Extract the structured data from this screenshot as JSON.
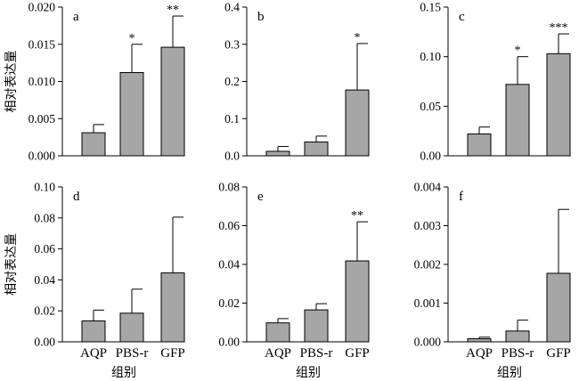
{
  "figure": {
    "ylabel": "相对表达量",
    "xlabel": "组别",
    "categories": [
      "AQP",
      "PBS-r",
      "GFP"
    ]
  },
  "colors": {
    "bar_fill": "#a6a6a6",
    "stroke": "#000000"
  },
  "chart_data": [
    {
      "type": "bar",
      "panel": "a",
      "categories": [
        "AQP",
        "PBS-r",
        "GFP"
      ],
      "values": [
        0.0031,
        0.0112,
        0.0146
      ],
      "errors": [
        0.0011,
        0.0038,
        0.0042
      ],
      "significance": [
        "",
        "*",
        "**"
      ],
      "ylim": [
        0,
        0.02
      ],
      "yticks": [
        "0.000",
        "0.005",
        "0.010",
        "0.015",
        "0.020"
      ],
      "ylabel": "相对表达量",
      "xlabel": ""
    },
    {
      "type": "bar",
      "panel": "b",
      "categories": [
        "AQP",
        "PBS-r",
        "GFP"
      ],
      "values": [
        0.012,
        0.037,
        0.177
      ],
      "errors": [
        0.013,
        0.016,
        0.125
      ],
      "significance": [
        "",
        "",
        "*"
      ],
      "ylim": [
        0,
        0.4
      ],
      "yticks": [
        "0.0",
        "0.1",
        "0.2",
        "0.3",
        "0.4"
      ],
      "ylabel": "",
      "xlabel": ""
    },
    {
      "type": "bar",
      "panel": "c",
      "categories": [
        "AQP",
        "PBS-r",
        "GFP"
      ],
      "values": [
        0.022,
        0.072,
        0.103
      ],
      "errors": [
        0.007,
        0.028,
        0.02
      ],
      "significance": [
        "",
        "*",
        "***"
      ],
      "ylim": [
        0,
        0.15
      ],
      "yticks": [
        "0.00",
        "0.05",
        "0.10",
        "0.15"
      ],
      "ylabel": "",
      "xlabel": ""
    },
    {
      "type": "bar",
      "panel": "d",
      "categories": [
        "AQP",
        "PBS-r",
        "GFP"
      ],
      "values": [
        0.0135,
        0.0185,
        0.0445
      ],
      "errors": [
        0.007,
        0.0155,
        0.036
      ],
      "significance": [
        "",
        "",
        ""
      ],
      "ylim": [
        0,
        0.1
      ],
      "yticks": [
        "0.00",
        "0.02",
        "0.04",
        "0.06",
        "0.08",
        "0.10"
      ],
      "ylabel": "相对表达量",
      "xlabel": "组别"
    },
    {
      "type": "bar",
      "panel": "e",
      "categories": [
        "AQP",
        "PBS-r",
        "GFP"
      ],
      "values": [
        0.0098,
        0.0165,
        0.0418
      ],
      "errors": [
        0.0022,
        0.0032,
        0.0202
      ],
      "significance": [
        "",
        "",
        "**"
      ],
      "ylim": [
        0,
        0.08
      ],
      "yticks": [
        "0.00",
        "0.02",
        "0.04",
        "0.06",
        "0.08"
      ],
      "ylabel": "",
      "xlabel": "组别"
    },
    {
      "type": "bar",
      "panel": "f",
      "categories": [
        "AQP",
        "PBS-r",
        "GFP"
      ],
      "values": [
        8e-05,
        0.00028,
        0.00177
      ],
      "errors": [
        4e-05,
        0.00028,
        0.00165
      ],
      "significance": [
        "",
        "",
        ""
      ],
      "ylim": [
        0,
        0.004
      ],
      "yticks": [
        "0.000",
        "0.001",
        "0.002",
        "0.003",
        "0.004"
      ],
      "ylabel": "",
      "xlabel": "组别"
    }
  ]
}
